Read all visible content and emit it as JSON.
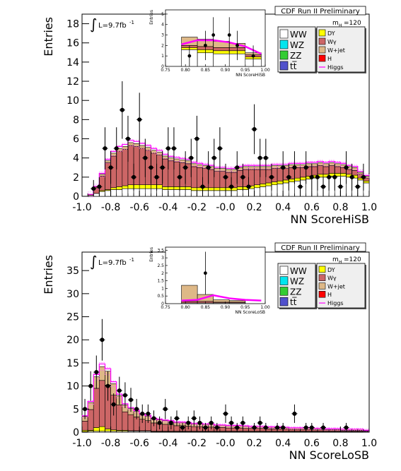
{
  "colors": {
    "WW": "#ffffff",
    "WZ": "#00e5ee",
    "ZZ": "#33cc33",
    "ttbar": "#5050cc",
    "DY": "#ffff00",
    "Wgamma": "#cc6666",
    "Wjet": "#deb887",
    "H": "#ff0000",
    "Higgs": "#ff00ff",
    "band": "#ff66ff",
    "data": "#000000"
  },
  "chart_data": [
    {
      "type": "stacked-histogram",
      "title": "CDF Run II Preliminary",
      "xlabel": "NN ScoreHiSB",
      "ylabel": "Entries",
      "lumi_label": "L=9.7fb",
      "lumi_sup": "-1",
      "mass_label": "m",
      "mass_sub": "H",
      "mass_value": "=120",
      "xlim": [
        -1.0,
        1.0
      ],
      "ylim": [
        0,
        19
      ],
      "xticks": [
        "-1.0",
        "-0.8",
        "-0.6",
        "-0.4",
        "-0.2",
        "-0.0",
        "0.2",
        "0.4",
        "0.6",
        "0.8",
        "1.0"
      ],
      "yticks": [
        "0",
        "2",
        "4",
        "6",
        "8",
        "10",
        "12",
        "14",
        "16",
        "18"
      ],
      "legend_left": [
        "WW",
        "WZ",
        "ZZ",
        "tt̅"
      ],
      "legend_right": [
        "DY",
        "Wγ",
        "W+jet",
        "H",
        "Higgs"
      ],
      "stack_bins": {
        "edges_start": -0.96,
        "bin_width": 0.04,
        "WW": [
          0.1,
          0.3,
          0.5,
          0.6,
          0.7,
          0.7,
          0.8,
          0.8,
          0.8,
          0.8,
          0.8,
          0.8,
          0.8,
          0.7,
          0.7,
          0.7,
          0.7,
          0.7,
          0.6,
          0.6,
          0.6,
          0.6,
          0.6,
          0.6,
          0.6,
          0.6,
          0.7,
          0.7,
          0.8,
          0.9,
          1.0,
          1.1,
          1.2,
          1.3,
          1.4,
          1.5,
          1.6,
          1.7,
          1.8,
          1.9,
          2.0,
          2.0,
          2.1,
          2.1,
          2.1,
          2.0,
          1.9,
          1.7,
          1.4
        ],
        "DY": [
          0.0,
          0.0,
          0.1,
          0.1,
          0.2,
          0.3,
          0.3,
          0.4,
          0.4,
          0.4,
          0.4,
          0.4,
          0.4,
          0.3,
          0.3,
          0.3,
          0.3,
          0.3,
          0.3,
          0.3,
          0.3,
          0.3,
          0.3,
          0.3,
          0.3,
          0.3,
          0.3,
          0.3,
          0.3,
          0.3,
          0.3,
          0.3,
          0.3,
          0.3,
          0.3,
          0.3,
          0.3,
          0.3,
          0.3,
          0.3,
          0.3,
          0.3,
          0.3,
          0.3,
          0.3,
          0.3,
          0.3,
          0.2,
          0.2
        ],
        "Wgamma": [
          0.1,
          0.6,
          1.5,
          2.8,
          3.3,
          3.7,
          3.8,
          4.1,
          4.0,
          3.8,
          3.6,
          3.3,
          3.1,
          2.9,
          2.7,
          2.6,
          2.5,
          2.4,
          2.2,
          2.1,
          2.0,
          1.9,
          1.7,
          1.7,
          1.6,
          1.6,
          1.7,
          1.8,
          1.7,
          1.6,
          1.5,
          1.4,
          1.4,
          1.3,
          1.2,
          1.2,
          1.1,
          1.0,
          1.0,
          0.9,
          0.9,
          0.8,
          0.8,
          0.7,
          0.6,
          0.5,
          0.5,
          0.4,
          0.3
        ],
        "Wjet": [
          0.0,
          0.1,
          0.2,
          0.2,
          0.3,
          0.3,
          0.3,
          0.3,
          0.3,
          0.3,
          0.3,
          0.3,
          0.3,
          0.3,
          0.3,
          0.3,
          0.3,
          0.3,
          0.3,
          0.3,
          0.3,
          0.3,
          0.3,
          0.3,
          0.3,
          0.3,
          0.3,
          0.3,
          0.3,
          0.3,
          0.3,
          0.3,
          0.3,
          0.3,
          0.3,
          0.3,
          0.3,
          0.3,
          0.3,
          0.3,
          0.3,
          0.3,
          0.3,
          0.3,
          0.3,
          0.3,
          0.3,
          0.2,
          0.2
        ]
      },
      "data_points": [
        {
          "x": -0.92,
          "y": 0.8,
          "err": 0.9
        },
        {
          "x": -0.88,
          "y": 1.0,
          "err": 1.0
        },
        {
          "x": -0.84,
          "y": 5.0,
          "err": 2.2
        },
        {
          "x": -0.8,
          "y": 3.0,
          "err": 1.7
        },
        {
          "x": -0.76,
          "y": 5.0,
          "err": 2.2
        },
        {
          "x": -0.72,
          "y": 9.0,
          "err": 3.0
        },
        {
          "x": -0.68,
          "y": 6.0,
          "err": 2.4
        },
        {
          "x": -0.64,
          "y": 2.0,
          "err": 1.4
        },
        {
          "x": -0.6,
          "y": 8.0,
          "err": 2.8
        },
        {
          "x": -0.56,
          "y": 4.0,
          "err": 2.0
        },
        {
          "x": -0.52,
          "y": 3.0,
          "err": 1.7
        },
        {
          "x": -0.48,
          "y": 2.0,
          "err": 1.4
        },
        {
          "x": -0.44,
          "y": 3.0,
          "err": 1.7
        },
        {
          "x": -0.4,
          "y": 5.0,
          "err": 2.2
        },
        {
          "x": -0.36,
          "y": 5.0,
          "err": 2.2
        },
        {
          "x": -0.32,
          "y": 2.0,
          "err": 1.4
        },
        {
          "x": -0.28,
          "y": 3.0,
          "err": 1.7
        },
        {
          "x": -0.24,
          "y": 4.0,
          "err": 2.0
        },
        {
          "x": -0.2,
          "y": 6.0,
          "err": 2.4
        },
        {
          "x": -0.16,
          "y": 1.0,
          "err": 1.0
        },
        {
          "x": -0.12,
          "y": 3.0,
          "err": 1.7
        },
        {
          "x": -0.08,
          "y": 4.0,
          "err": 2.0
        },
        {
          "x": -0.04,
          "y": 5.0,
          "err": 2.2
        },
        {
          "x": 0.0,
          "y": 2.0,
          "err": 1.4
        },
        {
          "x": 0.04,
          "y": 1.0,
          "err": 1.0
        },
        {
          "x": 0.08,
          "y": 3.0,
          "err": 1.7
        },
        {
          "x": 0.12,
          "y": 2.0,
          "err": 1.4
        },
        {
          "x": 0.16,
          "y": 1.0,
          "err": 1.0
        },
        {
          "x": 0.2,
          "y": 7.0,
          "err": 2.6
        },
        {
          "x": 0.24,
          "y": 4.0,
          "err": 2.0
        },
        {
          "x": 0.28,
          "y": 4.0,
          "err": 2.0
        },
        {
          "x": 0.32,
          "y": 2.0,
          "err": 1.4
        },
        {
          "x": 0.4,
          "y": 3.0,
          "err": 1.7
        },
        {
          "x": 0.44,
          "y": 2.0,
          "err": 1.4
        },
        {
          "x": 0.48,
          "y": 3.0,
          "err": 1.7
        },
        {
          "x": 0.52,
          "y": 1.0,
          "err": 1.0
        },
        {
          "x": 0.56,
          "y": 3.0,
          "err": 1.7
        },
        {
          "x": 0.6,
          "y": 2.0,
          "err": 1.4
        },
        {
          "x": 0.64,
          "y": 2.0,
          "err": 1.4
        },
        {
          "x": 0.68,
          "y": 1.0,
          "err": 1.0
        },
        {
          "x": 0.72,
          "y": 2.0,
          "err": 1.4
        },
        {
          "x": 0.76,
          "y": 2.0,
          "err": 1.4
        },
        {
          "x": 0.8,
          "y": 1.0,
          "err": 1.0
        },
        {
          "x": 0.84,
          "y": 3.0,
          "err": 1.7
        },
        {
          "x": 0.88,
          "y": 2.0,
          "err": 1.4
        },
        {
          "x": 0.92,
          "y": 1.0,
          "err": 1.0
        },
        {
          "x": 0.96,
          "y": 2.0,
          "err": 1.4
        }
      ],
      "inset": {
        "xlabel": "NN ScoreHiSB",
        "ylabel": "Entries",
        "xlim": [
          0.75,
          1.0
        ],
        "ylim": [
          0,
          5.4
        ],
        "xticks": [
          "0.75",
          "0.80",
          "0.85",
          "0.90",
          "0.95",
          "1.00"
        ],
        "yticks": [
          "0",
          "1",
          "2",
          "3",
          "4",
          "5"
        ],
        "bins": [
          {
            "x0": 0.79,
            "x1": 0.83,
            "WW": 1.6,
            "DY": 0.2,
            "Wgamma": 0.2,
            "Wjet": 0.8
          },
          {
            "x0": 0.83,
            "x1": 0.87,
            "WW": 1.3,
            "DY": 0.3,
            "Wgamma": 0.3,
            "Wjet": 0.7
          },
          {
            "x0": 0.87,
            "x1": 0.91,
            "WW": 1.2,
            "DY": 0.3,
            "Wgamma": 0.3,
            "Wjet": 0.6
          },
          {
            "x0": 0.91,
            "x1": 0.95,
            "WW": 1.2,
            "DY": 0.3,
            "Wgamma": 0.3,
            "Wjet": 0.4
          },
          {
            "x0": 0.95,
            "x1": 0.99,
            "WW": 0.7,
            "DY": 0.2,
            "Wgamma": 0.2,
            "Wjet": 0.2
          }
        ],
        "higgs_line": [
          [
            0.79,
            2.1
          ],
          [
            0.83,
            2.5
          ],
          [
            0.87,
            2.5
          ],
          [
            0.91,
            2.3
          ],
          [
            0.95,
            1.9
          ],
          [
            0.99,
            1.2
          ]
        ],
        "data_points": [
          {
            "x": 0.81,
            "y": 1.0,
            "err": 1.0
          },
          {
            "x": 0.85,
            "y": 2.0,
            "err": 1.4
          },
          {
            "x": 0.87,
            "y": 3.0,
            "err": 1.7
          },
          {
            "x": 0.91,
            "y": 3.0,
            "err": 1.7
          },
          {
            "x": 0.93,
            "y": 2.0,
            "err": 1.4
          },
          {
            "x": 0.97,
            "y": 1.0,
            "err": 1.0
          }
        ]
      }
    },
    {
      "type": "stacked-histogram",
      "title": "CDF Run II Preliminary",
      "xlabel": "NN ScoreLoSB",
      "ylabel": "Entries",
      "lumi_label": "L=9.7fb",
      "lumi_sup": "-1",
      "mass_label": "m",
      "mass_sub": "H",
      "mass_value": "=120",
      "xlim": [
        -1.0,
        1.0
      ],
      "ylim": [
        0,
        39
      ],
      "xticks": [
        "-1.0",
        "-0.8",
        "-0.6",
        "-0.4",
        "-0.2",
        "-0.0",
        "0.2",
        "0.4",
        "0.6",
        "0.8",
        "1.0"
      ],
      "yticks": [
        "0",
        "5",
        "10",
        "15",
        "20",
        "25",
        "30",
        "35"
      ],
      "legend_left": [
        "WW",
        "WZ",
        "ZZ",
        "tt̅"
      ],
      "legend_right": [
        "DY",
        "Wγ",
        "W+jet",
        "H",
        "Higgs"
      ],
      "stack_bins": {
        "edges_start": -1.0,
        "bin_width": 0.04,
        "WW": [
          0.1,
          0.2,
          0.2,
          0.2,
          0.2,
          0.2,
          0.2,
          0.2,
          0.2,
          0.2,
          0.2,
          0.2,
          0.1,
          0.1,
          0.1,
          0.1,
          0.1,
          0.1,
          0.1,
          0.1,
          0.1,
          0.1,
          0.1,
          0.1,
          0.1,
          0.1,
          0.1,
          0.1,
          0.1,
          0.1,
          0.1,
          0.1,
          0.1,
          0.1,
          0.1,
          0.1,
          0.1,
          0.1,
          0.1,
          0.1,
          0.1,
          0.1,
          0.1,
          0.1,
          0.1,
          0.1,
          0.1,
          0.1,
          0.1,
          0.1
        ],
        "DY": [
          0.3,
          0.2,
          0.8,
          1.0,
          0.5,
          0.3,
          0.2,
          0.2,
          0.1,
          0.1,
          0.1,
          0.1,
          0.1,
          0.1,
          0.1,
          0.1,
          0.1,
          0.1,
          0.1,
          0.1,
          0.1,
          0.1,
          0.1,
          0.1,
          0.1,
          0.1,
          0.1,
          0.1,
          0.1,
          0.1,
          0.1,
          0.1,
          0.1,
          0.1,
          0.1,
          0.1,
          0.1,
          0.1,
          0.1,
          0.1,
          0.1,
          0.1,
          0.1,
          0.1,
          0.1,
          0.1,
          0.1,
          0.1,
          0.1,
          0.1
        ],
        "Wgamma": [
          2.0,
          4.5,
          8.5,
          10.0,
          9.5,
          7.5,
          5.5,
          4.0,
          3.5,
          3.0,
          2.5,
          2.2,
          1.8,
          1.6,
          1.5,
          1.4,
          1.2,
          1.2,
          1.1,
          1.0,
          1.0,
          0.9,
          0.9,
          0.8,
          0.8,
          0.7,
          0.7,
          0.7,
          0.6,
          0.6,
          0.6,
          0.6,
          0.5,
          0.5,
          0.5,
          0.5,
          0.4,
          0.4,
          0.4,
          0.4,
          0.3,
          0.3,
          0.3,
          0.3,
          0.3,
          0.2,
          0.2,
          0.2,
          0.2,
          0.1
        ],
        "Wjet": [
          1.0,
          1.5,
          2.5,
          3.0,
          3.0,
          2.5,
          2.0,
          1.5,
          1.3,
          1.2,
          1.0,
          1.0,
          0.9,
          0.9,
          0.8,
          0.8,
          0.7,
          0.7,
          0.7,
          0.6,
          0.6,
          0.6,
          0.6,
          0.5,
          0.5,
          0.5,
          0.5,
          0.5,
          0.5,
          0.4,
          0.4,
          0.4,
          0.4,
          0.4,
          0.4,
          0.3,
          0.3,
          0.3,
          0.3,
          0.3,
          0.3,
          0.3,
          0.2,
          0.2,
          0.2,
          0.2,
          0.2,
          0.2,
          0.2,
          0.1
        ]
      },
      "data_points": [
        {
          "x": -0.98,
          "y": 5.0,
          "err": 2.2
        },
        {
          "x": -0.94,
          "y": 10.0,
          "err": 3.2
        },
        {
          "x": -0.9,
          "y": 13.0,
          "err": 3.6
        },
        {
          "x": -0.86,
          "y": 20.0,
          "err": 4.5
        },
        {
          "x": -0.82,
          "y": 10.0,
          "err": 3.2
        },
        {
          "x": -0.78,
          "y": 6.0,
          "err": 2.4
        },
        {
          "x": -0.74,
          "y": 9.0,
          "err": 3.0
        },
        {
          "x": -0.7,
          "y": 8.0,
          "err": 2.8
        },
        {
          "x": -0.66,
          "y": 7.0,
          "err": 2.6
        },
        {
          "x": -0.62,
          "y": 5.0,
          "err": 2.2
        },
        {
          "x": -0.58,
          "y": 4.0,
          "err": 2.0
        },
        {
          "x": -0.54,
          "y": 4.0,
          "err": 2.0
        },
        {
          "x": -0.5,
          "y": 3.0,
          "err": 1.7
        },
        {
          "x": -0.46,
          "y": 2.0,
          "err": 1.4
        },
        {
          "x": -0.42,
          "y": 5.0,
          "err": 2.2
        },
        {
          "x": -0.38,
          "y": 2.0,
          "err": 1.4
        },
        {
          "x": -0.34,
          "y": 3.0,
          "err": 1.7
        },
        {
          "x": -0.3,
          "y": 1.0,
          "err": 1.0
        },
        {
          "x": -0.26,
          "y": 2.0,
          "err": 1.4
        },
        {
          "x": -0.22,
          "y": 3.0,
          "err": 1.7
        },
        {
          "x": -0.18,
          "y": 2.0,
          "err": 1.4
        },
        {
          "x": -0.14,
          "y": 1.0,
          "err": 1.0
        },
        {
          "x": -0.1,
          "y": 2.0,
          "err": 1.4
        },
        {
          "x": -0.06,
          "y": 1.0,
          "err": 1.0
        },
        {
          "x": 0.0,
          "y": 4.0,
          "err": 2.0
        },
        {
          "x": 0.04,
          "y": 2.0,
          "err": 1.4
        },
        {
          "x": 0.08,
          "y": 1.0,
          "err": 1.0
        },
        {
          "x": 0.12,
          "y": 2.0,
          "err": 1.4
        },
        {
          "x": 0.2,
          "y": 1.0,
          "err": 1.0
        },
        {
          "x": 0.24,
          "y": 2.0,
          "err": 1.4
        },
        {
          "x": 0.28,
          "y": 1.0,
          "err": 1.0
        },
        {
          "x": 0.36,
          "y": 1.0,
          "err": 1.0
        },
        {
          "x": 0.4,
          "y": 1.0,
          "err": 1.0
        },
        {
          "x": 0.48,
          "y": 4.0,
          "err": 2.0
        },
        {
          "x": 0.56,
          "y": 1.0,
          "err": 1.0
        },
        {
          "x": 0.6,
          "y": 1.0,
          "err": 1.0
        },
        {
          "x": 0.68,
          "y": 1.0,
          "err": 1.0
        },
        {
          "x": 0.84,
          "y": 1.0,
          "err": 1.0
        }
      ],
      "inset": {
        "xlabel": "NN ScoreLoSB",
        "ylabel": "Entries",
        "xlim": [
          0.75,
          1.0
        ],
        "ylim": [
          0,
          3.7
        ],
        "xticks": [
          "0.75",
          "0.80",
          "0.85",
          "0.90",
          "0.95",
          "1.00"
        ],
        "yticks": [
          "0",
          "0.5",
          "1",
          "1.5",
          "2",
          "2.5",
          "3",
          "3.5"
        ],
        "bins": [
          {
            "x0": 0.79,
            "x1": 0.83,
            "WW": 0.05,
            "DY": 0.0,
            "Wgamma": 0.1,
            "Wjet": 1.05
          },
          {
            "x0": 0.83,
            "x1": 0.87,
            "WW": 0.05,
            "DY": 0.0,
            "Wgamma": 0.1,
            "Wjet": 0.45
          },
          {
            "x0": 0.87,
            "x1": 0.91,
            "WW": 0.05,
            "DY": 0.0,
            "Wgamma": 0.05,
            "Wjet": 0.15
          },
          {
            "x0": 0.91,
            "x1": 0.95,
            "WW": 0.05,
            "DY": 0.0,
            "Wgamma": 0.05,
            "Wjet": 0.1
          }
        ],
        "higgs_line": [
          [
            0.79,
            0.2
          ],
          [
            0.83,
            0.25
          ],
          [
            0.87,
            0.55
          ],
          [
            0.91,
            0.35
          ],
          [
            0.95,
            0.25
          ],
          [
            0.99,
            0.2
          ]
        ],
        "data_points": [
          {
            "x": 0.85,
            "y": 2.0,
            "err": 1.4
          }
        ]
      }
    }
  ]
}
